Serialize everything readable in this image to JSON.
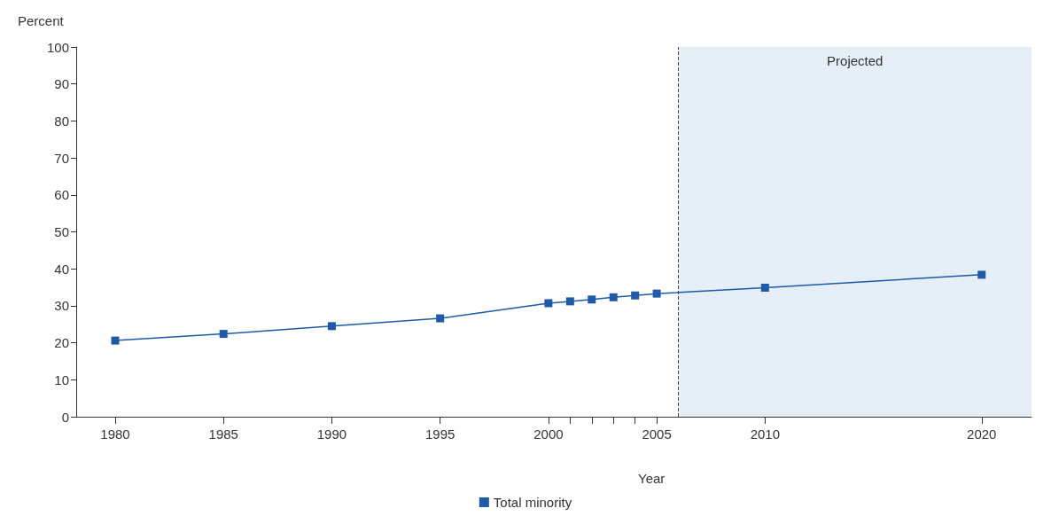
{
  "chart_data": {
    "type": "line",
    "ylabel": "Percent",
    "xlabel": "Year",
    "x": [
      1980,
      1985,
      1990,
      1995,
      2000,
      2001,
      2002,
      2003,
      2004,
      2005,
      2010,
      2020
    ],
    "series": [
      {
        "name": "Total minority",
        "color": "#1f5aa6",
        "values": [
          20.6,
          22.4,
          24.5,
          26.6,
          30.7,
          31.2,
          31.7,
          32.3,
          32.8,
          33.3,
          34.9,
          38.4
        ]
      }
    ],
    "xlim": [
      1978.2,
      2022.3
    ],
    "xticks": [
      1980,
      1985,
      1990,
      1995,
      2000,
      {
        "value": 2001,
        "label": null
      },
      {
        "value": 2002,
        "label": null
      },
      {
        "value": 2003,
        "label": null
      },
      {
        "value": 2004,
        "label": null
      },
      2005,
      2010,
      2020
    ],
    "ylim": [
      0,
      100
    ],
    "yticks": [
      0,
      10,
      20,
      30,
      40,
      50,
      60,
      70,
      80,
      90,
      100
    ],
    "ref_lines": [
      {
        "axis": "x",
        "value": 2006,
        "color": "#444444",
        "line_style": "dashed"
      }
    ],
    "bands": [
      {
        "axis": "x",
        "from": 2006,
        "to": 2022.3,
        "label": "Projected",
        "color": "#e6eef7"
      }
    ],
    "marker": "square",
    "line_style": "solid",
    "grid": false,
    "legend": "bottom"
  }
}
